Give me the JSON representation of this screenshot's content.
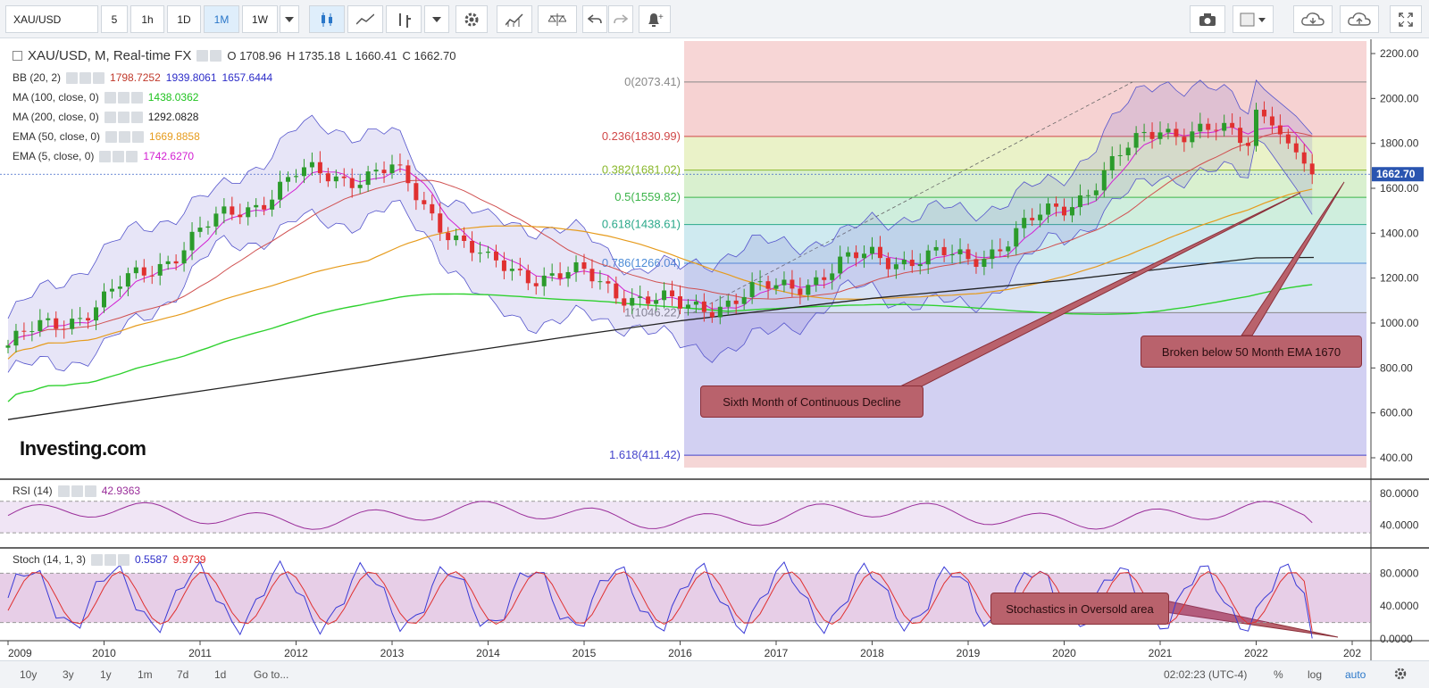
{
  "toolbar": {
    "symbol": "XAU/USD",
    "intervals": [
      "5",
      "1h",
      "1D",
      "1M",
      "1W"
    ],
    "active_interval": "1M"
  },
  "legend": {
    "title": "XAU/USD, M, Real-time FX",
    "open": "O 1708.96",
    "high": "H 1735.18",
    "low": "L 1660.41",
    "close": "C 1662.70",
    "indicators": [
      {
        "name": "BB (20, 2)",
        "values": [
          "1798.7252",
          "1939.8061",
          "1657.6444"
        ],
        "colors": [
          "#c0392b",
          "#2c2cc8",
          "#2c2cc8"
        ]
      },
      {
        "name": "MA (100, close, 0)",
        "values": [
          "1438.0362"
        ],
        "colors": [
          "#1fc21f"
        ]
      },
      {
        "name": "MA (200, close, 0)",
        "values": [
          "1292.0828"
        ],
        "colors": [
          "#222222"
        ]
      },
      {
        "name": "EMA (50, close, 0)",
        "values": [
          "1669.8858"
        ],
        "colors": [
          "#e69b1c"
        ]
      },
      {
        "name": "EMA (5, close, 0)",
        "values": [
          "1742.6270"
        ],
        "colors": [
          "#d21fd2"
        ]
      }
    ]
  },
  "fib_labels": [
    {
      "label": "0(2073.41)",
      "color": "#888888"
    },
    {
      "label": "0.236(1830.99)",
      "color": "#d04848"
    },
    {
      "label": "0.382(1681.02)",
      "color": "#8ab82c"
    },
    {
      "label": "0.5(1559.82)",
      "color": "#3cb44a"
    },
    {
      "label": "0.618(1438.61)",
      "color": "#2aa88a"
    },
    {
      "label": "0.786(1266.04)",
      "color": "#4c8cd6"
    },
    {
      "label": "1(1046.22)",
      "color": "#888888"
    },
    {
      "label": "1.618(411.42)",
      "color": "#4444cc"
    }
  ],
  "price_axis": [
    "2200.00",
    "2000.00",
    "1800.00",
    "1600.00",
    "1400.00",
    "1200.00",
    "1000.00",
    "800.00",
    "600.00",
    "400.00"
  ],
  "last_price": "1662.70",
  "rsi": {
    "name": "RSI (14)",
    "value": "42.9363",
    "axis": [
      "80.0000",
      "40.0000"
    ]
  },
  "stoch": {
    "name": "Stoch (14, 1, 3)",
    "k": "0.5587",
    "d": "9.9739",
    "axis": [
      "80.0000",
      "40.0000",
      "0.0000"
    ]
  },
  "time_axis": [
    "2009",
    "2010",
    "2011",
    "2012",
    "2013",
    "2014",
    "2015",
    "2016",
    "2017",
    "2018",
    "2019",
    "2020",
    "2021",
    "2022",
    "202"
  ],
  "callouts": {
    "c1": "Sixth Month of Continuous Decline",
    "c2": "Broken below 50 Month EMA 1670",
    "c3": "Stochastics in Oversold area"
  },
  "watermark": "Investing.com",
  "bottom": {
    "ranges": [
      "10y",
      "3y",
      "1y",
      "1m",
      "7d",
      "1d"
    ],
    "goto": "Go to...",
    "time": "02:02:23 (UTC-4)",
    "percent": "%",
    "log": "log",
    "auto": "auto"
  },
  "chart_data": {
    "type": "line",
    "title": "XAU/USD, M, Real-time FX",
    "x": [
      "2009",
      "2010",
      "2011",
      "2012",
      "2013",
      "2014",
      "2015",
      "2016",
      "2017",
      "2018",
      "2019",
      "2020",
      "2021",
      "2022"
    ],
    "series": [
      {
        "name": "XAU/USD",
        "values": [
          900,
          1100,
          1400,
          1650,
          1670,
          1250,
          1200,
          1060,
          1150,
          1300,
          1280,
          1520,
          1880,
          1810
        ]
      },
      {
        "name": "MA (200, close, 0)",
        "values": [
          null,
          null,
          null,
          null,
          null,
          null,
          950,
          1010,
          1060,
          1110,
          1150,
          1190,
          1240,
          1290
        ]
      }
    ],
    "ylim": [
      400,
      2200
    ],
    "fib_levels": [
      2073.41,
      1830.99,
      1681.02,
      1559.82,
      1438.61,
      1266.04,
      1046.22,
      411.42
    ]
  }
}
